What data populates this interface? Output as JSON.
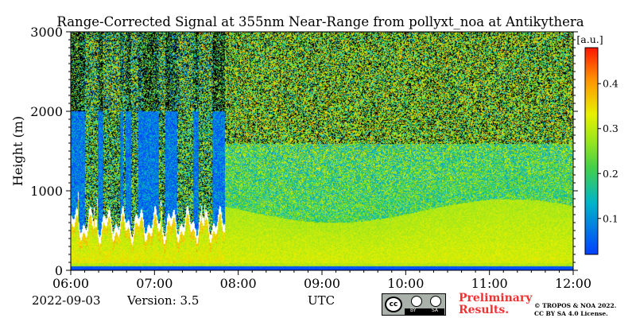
{
  "chart_data": {
    "type": "heatmap",
    "title": "Range-Corrected Signal at 355nm Near-Range from pollyxt_noa at Antikythera",
    "ylabel": "Height (m)",
    "xlabel": "UTC",
    "x_ticks": [
      "06:00",
      "07:00",
      "08:00",
      "09:00",
      "10:00",
      "11:00",
      "12:00"
    ],
    "y_ticks": [
      0,
      1000,
      2000,
      3000
    ],
    "xlim": [
      "06:00",
      "12:00"
    ],
    "ylim": [
      0,
      3000
    ],
    "colorbar": {
      "label": "[a.u.]",
      "ticks": [
        0.1,
        0.2,
        0.3,
        0.4
      ],
      "range": [
        0.02,
        0.48
      ],
      "colormap": "jet"
    },
    "features": {
      "cloud_base_height_m": [
        500,
        1200
      ],
      "cloud_period": [
        "06:00",
        "07:50"
      ],
      "aerosol_layer_top_m": 800
    }
  },
  "footer": {
    "date": "2022-09-03",
    "version": "Version: 3.5",
    "timezone": "UTC",
    "license_badge": [
      "cc",
      "BY",
      "SA"
    ],
    "preliminary_line1": "Preliminary",
    "preliminary_line2": "Results.",
    "copyright_line1": "© TROPOS & NOA 2022.",
    "copyright_line2": "CC BY SA 4.0 License."
  }
}
